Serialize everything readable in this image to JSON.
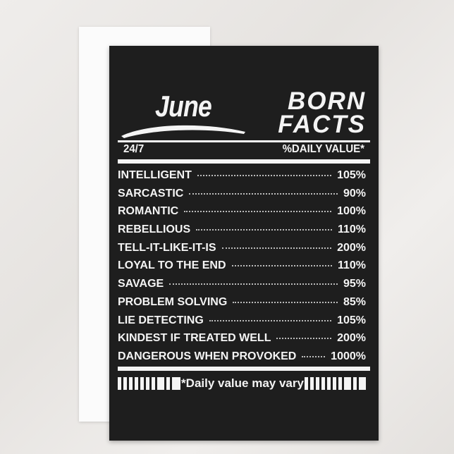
{
  "title": {
    "month": "June",
    "line1": "BORN",
    "line2": "FACTS"
  },
  "header": {
    "left": "24/7",
    "right": "%DAILY VALUE*"
  },
  "facts": [
    {
      "label": "INTELLIGENT",
      "value": "105%"
    },
    {
      "label": "SARCASTIC",
      "value": "90%"
    },
    {
      "label": "ROMANTIC",
      "value": "100%"
    },
    {
      "label": "REBELLIOUS",
      "value": "110%"
    },
    {
      "label": "TELL-IT-LIKE-IT-IS",
      "value": "200%"
    },
    {
      "label": "LOYAL TO THE END",
      "value": "110%"
    },
    {
      "label": "SAVAGE",
      "value": "95%"
    },
    {
      "label": "PROBLEM SOLVING",
      "value": "85%"
    },
    {
      "label": "LIE DETECTING",
      "value": "105%"
    },
    {
      "label": "KINDEST IF TREATED WELL",
      "value": "200%"
    },
    {
      "label": "DANGEROUS WHEN PROVOKED",
      "value": "1000%"
    }
  ],
  "footer": {
    "note": "*Daily value may vary"
  },
  "colors": {
    "card": "#1e1e1e",
    "text": "#f4f4f4",
    "background": "#ecead8"
  }
}
